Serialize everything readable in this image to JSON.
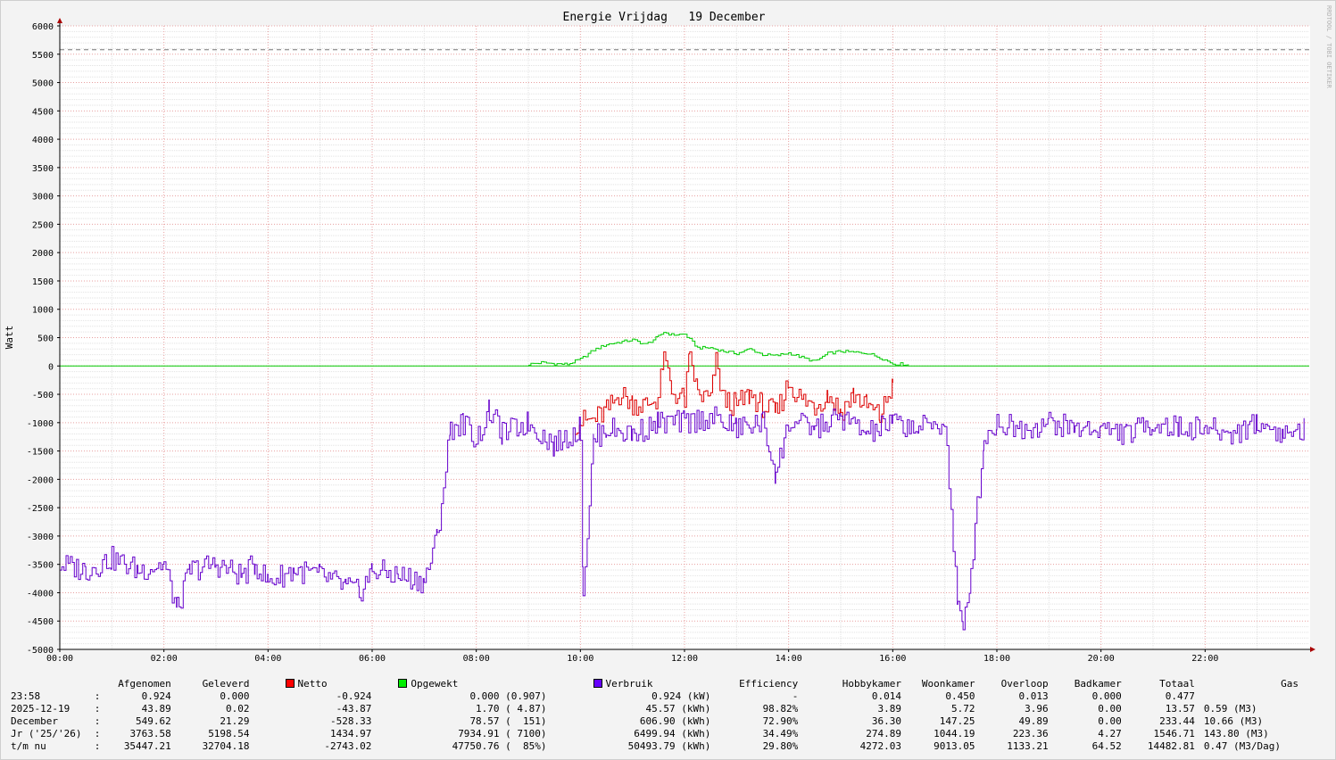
{
  "chart_data": {
    "type": "line",
    "title": "Energie Vrijdag   19 December",
    "ylabel": "Watt",
    "xlabel": "",
    "ylim": [
      -5000,
      6000
    ],
    "yticks": [
      6000,
      5500,
      5000,
      4500,
      4000,
      3500,
      3000,
      2500,
      2000,
      1500,
      1000,
      500,
      0,
      -500,
      -1000,
      -1500,
      -2000,
      -2500,
      -3000,
      -3500,
      -4000,
      -4500,
      -5000
    ],
    "xlim_hours": [
      0,
      24
    ],
    "xtick_labels": [
      "00:00",
      "02:00",
      "04:00",
      "06:00",
      "08:00",
      "10:00",
      "12:00",
      "14:00",
      "16:00",
      "18:00",
      "20:00",
      "22:00"
    ],
    "max_line_value": 5580,
    "grid": true,
    "series": [
      {
        "name": "Opgewekt",
        "color": "#00cc00",
        "x_hours": [
          9.0,
          9.25,
          9.5,
          9.75,
          10.0,
          10.25,
          10.5,
          10.75,
          11.0,
          11.25,
          11.5,
          11.6,
          11.75,
          12.0,
          12.25,
          12.5,
          12.75,
          13.0,
          13.25,
          13.5,
          13.75,
          14.0,
          14.25,
          14.5,
          14.75,
          15.0,
          15.25,
          15.5,
          15.75,
          16.0,
          16.3
        ],
        "values": [
          30,
          60,
          40,
          30,
          120,
          280,
          380,
          420,
          460,
          380,
          520,
          600,
          550,
          560,
          320,
          320,
          260,
          220,
          300,
          200,
          180,
          230,
          150,
          80,
          220,
          260,
          240,
          230,
          150,
          40,
          30
        ]
      },
      {
        "name": "Netto",
        "color": "#dd0000",
        "x_hours": [
          9.9,
          10.25,
          10.5,
          10.75,
          11.0,
          11.25,
          11.5,
          11.6,
          11.75,
          12.0,
          12.1,
          12.25,
          12.5,
          12.6,
          12.75,
          13.0,
          13.25,
          13.5,
          13.75,
          14.0,
          14.25,
          14.5,
          14.75,
          15.0,
          15.25,
          15.5,
          15.75,
          16.0
        ],
        "values": [
          -1000,
          -950,
          -800,
          -500,
          -650,
          -700,
          -550,
          200,
          -450,
          -600,
          200,
          -500,
          -600,
          50,
          -600,
          -700,
          -500,
          -700,
          -850,
          -300,
          -600,
          -700,
          -500,
          -800,
          -500,
          -700,
          -900,
          -300
        ]
      },
      {
        "name": "Verbruik",
        "color": "#6600cc",
        "x_hours": [
          0,
          0.5,
          1.0,
          1.5,
          2.0,
          2.25,
          2.5,
          3.0,
          3.5,
          3.75,
          4.0,
          4.5,
          5.0,
          5.5,
          5.75,
          6.0,
          6.5,
          7.0,
          7.25,
          7.5,
          7.75,
          8.0,
          8.25,
          8.5,
          9.0,
          9.5,
          10.0,
          10.05,
          10.25,
          10.5,
          11.0,
          11.5,
          12.0,
          12.5,
          13.0,
          13.5,
          13.75,
          14.0,
          14.5,
          15.0,
          15.5,
          16.0,
          16.5,
          17.0,
          17.25,
          17.35,
          17.5,
          17.75,
          18.0,
          18.5,
          19.0,
          19.5,
          20.0,
          20.5,
          21.0,
          21.5,
          22.0,
          22.5,
          23.0,
          23.5,
          23.9
        ],
        "values": [
          -3500,
          -3600,
          -3400,
          -3600,
          -3500,
          -4300,
          -3600,
          -3500,
          -3700,
          -3500,
          -3800,
          -3600,
          -3700,
          -3900,
          -4000,
          -3600,
          -3700,
          -3800,
          -3000,
          -1100,
          -1000,
          -1300,
          -800,
          -1200,
          -1000,
          -1400,
          -1100,
          -4000,
          -1300,
          -1100,
          -1200,
          -1000,
          -1000,
          -900,
          -1100,
          -1000,
          -1900,
          -1000,
          -1100,
          -900,
          -1200,
          -1000,
          -1100,
          -1000,
          -4300,
          -4700,
          -3600,
          -1300,
          -1000,
          -1100,
          -1000,
          -1100,
          -1100,
          -1200,
          -1000,
          -1100,
          -1100,
          -1200,
          -1000,
          -1200,
          -1100
        ]
      }
    ]
  },
  "vendor_text": "RRDTOOL / TOBI OETIKER",
  "stats": {
    "headers": [
      "",
      "",
      "Afgenomen",
      "Geleverd",
      "Netto",
      "Opgewekt",
      "Verbruik",
      "Efficiency",
      "Hobbykamer",
      "Woonkamer",
      "Overloop",
      "Badkamer",
      "Totaal",
      "Gas"
    ],
    "legend_colors": {
      "Netto": "#ff0000",
      "Opgewekt": "#00ee00",
      "Verbruik": "#6600ff"
    },
    "rows": [
      [
        "23:58",
        ":",
        "0.924",
        "0.000",
        "-0.924",
        "0.000 (0.907)",
        "0.924 (kW)",
        "-",
        "0.014",
        "0.450",
        "0.013",
        "0.000",
        "0.477",
        ""
      ],
      [
        "2025-12-19",
        ":",
        "43.89",
        "0.02",
        "-43.87",
        "1.70 ( 4.87)",
        "45.57 (kWh)",
        "98.82%",
        "3.89",
        "5.72",
        "3.96",
        "0.00",
        "13.57",
        "0.59 (M3)"
      ],
      [
        "December",
        ":",
        "549.62",
        "21.29",
        "-528.33",
        "78.57 (  151)",
        "606.90 (kWh)",
        "72.90%",
        "36.30",
        "147.25",
        "49.89",
        "0.00",
        "233.44",
        "10.66 (M3)"
      ],
      [
        "Jr ('25/'26)",
        ":",
        "3763.58",
        "5198.54",
        "1434.97",
        "7934.91 ( 7100)",
        "6499.94 (kWh)",
        "34.49%",
        "274.89",
        "1044.19",
        "223.36",
        "4.27",
        "1546.71",
        "143.80 (M3)"
      ],
      [
        "t/m nu",
        ":",
        "35447.21",
        "32704.18",
        "-2743.02",
        "47750.76 (  85%)",
        "50493.79 (kWh)",
        "29.80%",
        "4272.03",
        "9013.05",
        "1133.21",
        "64.52",
        "14482.81",
        "0.47 (M3/Dag)"
      ]
    ]
  }
}
